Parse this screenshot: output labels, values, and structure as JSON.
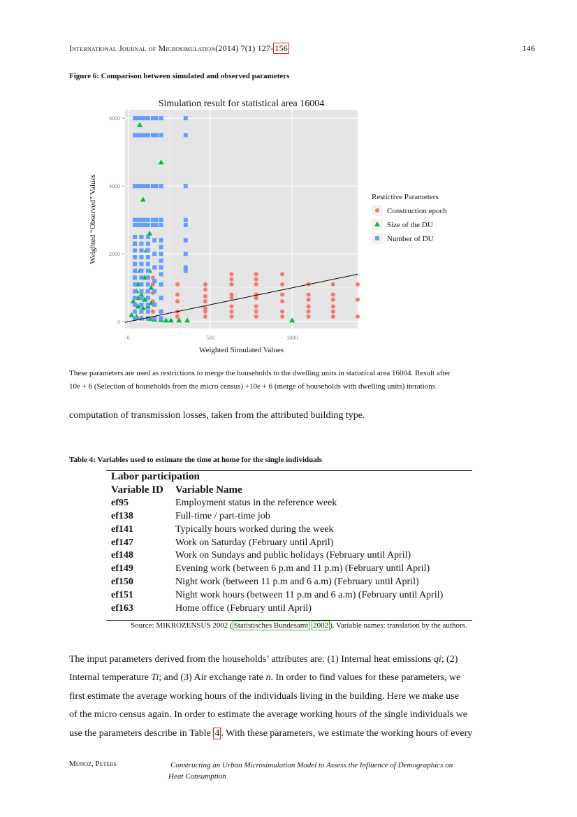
{
  "header": {
    "journal_name": "International Journal of Microsimulation",
    "journal_volume": "(2014) 7(1) 127-",
    "journal_end_page": "156",
    "page_number": "146"
  },
  "figure": {
    "caption": "Figure 6: Comparison between simulated and observed parameters",
    "note_line1": "These parameters are used as restrictions to merge the households to the dwelling units in statistical area 16004. Result after",
    "note_line2": "10e + 6 (Selection of households from the micro census) +10e + 6 (merge of households with dwelling units) iterations"
  },
  "chart_data": {
    "type": "scatter",
    "title": "Simulation result for statistical area 16004",
    "xlabel": "Weighted Simulated Values",
    "ylabel": "Weighted “Observed” Values",
    "xlim": [
      -20,
      1400
    ],
    "ylim": [
      -200,
      6250
    ],
    "x_ticks": [
      0,
      500,
      1000
    ],
    "y_ticks": [
      0,
      2000,
      4000,
      6000
    ],
    "x_tick_labels": [
      "0",
      "500",
      "1000"
    ],
    "y_tick_labels": [
      "0",
      "2000",
      "4000",
      "6000"
    ],
    "grid": true,
    "legend_title": "Restictive Parameters",
    "legend_position": "right",
    "series": [
      {
        "name": "Construction epoch",
        "shape": "circle",
        "color": "#f8766d",
        "points": [
          [
            150,
            1300
          ],
          [
            150,
            1100
          ],
          [
            150,
            850
          ],
          [
            150,
            600
          ],
          [
            150,
            300
          ],
          [
            150,
            100
          ],
          [
            300,
            1100
          ],
          [
            300,
            800
          ],
          [
            300,
            600
          ],
          [
            300,
            300
          ],
          [
            300,
            150
          ],
          [
            470,
            1100
          ],
          [
            470,
            950
          ],
          [
            470,
            750
          ],
          [
            470,
            600
          ],
          [
            470,
            400
          ],
          [
            470,
            300
          ],
          [
            470,
            150
          ],
          [
            630,
            1400
          ],
          [
            630,
            1250
          ],
          [
            630,
            1100
          ],
          [
            630,
            800
          ],
          [
            630,
            700
          ],
          [
            630,
            450
          ],
          [
            630,
            300
          ],
          [
            630,
            150
          ],
          [
            780,
            1400
          ],
          [
            780,
            1250
          ],
          [
            780,
            1100
          ],
          [
            780,
            800
          ],
          [
            780,
            700
          ],
          [
            780,
            450
          ],
          [
            780,
            300
          ],
          [
            780,
            150
          ],
          [
            940,
            1400
          ],
          [
            940,
            1100
          ],
          [
            940,
            800
          ],
          [
            940,
            600
          ],
          [
            940,
            300
          ],
          [
            940,
            150
          ],
          [
            1100,
            1100
          ],
          [
            1100,
            800
          ],
          [
            1100,
            650
          ],
          [
            1100,
            450
          ],
          [
            1100,
            300
          ],
          [
            1100,
            150
          ],
          [
            1250,
            1100
          ],
          [
            1250,
            800
          ],
          [
            1250,
            650
          ],
          [
            1250,
            450
          ],
          [
            1250,
            300
          ],
          [
            1250,
            150
          ],
          [
            1400,
            1100
          ],
          [
            1400,
            650
          ],
          [
            1400,
            150
          ]
        ]
      },
      {
        "name": "Size of the DU",
        "shape": "triangle",
        "color": "#00ba38",
        "points": [
          [
            70,
            5800
          ],
          [
            200,
            4700
          ],
          [
            90,
            3600
          ],
          [
            130,
            2600
          ],
          [
            40,
            2300
          ],
          [
            110,
            2100
          ],
          [
            70,
            1500
          ],
          [
            130,
            1500
          ],
          [
            100,
            1300
          ],
          [
            60,
            1100
          ],
          [
            140,
            1000
          ],
          [
            50,
            900
          ],
          [
            120,
            900
          ],
          [
            80,
            800
          ],
          [
            30,
            600
          ],
          [
            60,
            700
          ],
          [
            100,
            650
          ],
          [
            140,
            550
          ],
          [
            120,
            450
          ],
          [
            60,
            450
          ],
          [
            90,
            400
          ],
          [
            20,
            200
          ],
          [
            50,
            150
          ],
          [
            80,
            100
          ],
          [
            130,
            80
          ],
          [
            160,
            60
          ],
          [
            200,
            50
          ],
          [
            230,
            40
          ],
          [
            260,
            40
          ],
          [
            310,
            40
          ],
          [
            360,
            40
          ],
          [
            1000,
            40
          ]
        ]
      },
      {
        "name": "Number of DU",
        "shape": "square",
        "color": "#619cff",
        "points": [
          [
            40,
            6000
          ],
          [
            60,
            6000
          ],
          [
            80,
            6000
          ],
          [
            100,
            6000
          ],
          [
            120,
            6000
          ],
          [
            150,
            6000
          ],
          [
            170,
            6000
          ],
          [
            200,
            6000
          ],
          [
            40,
            5500
          ],
          [
            60,
            5500
          ],
          [
            80,
            5500
          ],
          [
            100,
            5500
          ],
          [
            120,
            5500
          ],
          [
            150,
            5500
          ],
          [
            170,
            5500
          ],
          [
            200,
            5500
          ],
          [
            350,
            6000
          ],
          [
            350,
            5500
          ],
          [
            350,
            4000
          ],
          [
            350,
            3000
          ],
          [
            350,
            2850
          ],
          [
            350,
            2400
          ],
          [
            350,
            2000
          ],
          [
            350,
            1600
          ],
          [
            350,
            1500
          ],
          [
            40,
            4000
          ],
          [
            60,
            4000
          ],
          [
            80,
            4000
          ],
          [
            100,
            4000
          ],
          [
            120,
            4000
          ],
          [
            150,
            4000
          ],
          [
            170,
            4000
          ],
          [
            200,
            4000
          ],
          [
            40,
            3000
          ],
          [
            40,
            2850
          ],
          [
            60,
            3000
          ],
          [
            60,
            2850
          ],
          [
            80,
            3000
          ],
          [
            80,
            2850
          ],
          [
            100,
            3000
          ],
          [
            100,
            2850
          ],
          [
            120,
            3000
          ],
          [
            120,
            2850
          ],
          [
            150,
            3000
          ],
          [
            150,
            2850
          ],
          [
            170,
            3000
          ],
          [
            170,
            2850
          ],
          [
            200,
            3000
          ],
          [
            200,
            2850
          ],
          [
            40,
            2500
          ],
          [
            40,
            2300
          ],
          [
            40,
            2100
          ],
          [
            40,
            1900
          ],
          [
            40,
            1700
          ],
          [
            40,
            1500
          ],
          [
            40,
            1300
          ],
          [
            40,
            1100
          ],
          [
            40,
            900
          ],
          [
            40,
            700
          ],
          [
            40,
            500
          ],
          [
            40,
            300
          ],
          [
            40,
            100
          ],
          [
            80,
            2500
          ],
          [
            80,
            2300
          ],
          [
            80,
            2100
          ],
          [
            80,
            1900
          ],
          [
            80,
            1700
          ],
          [
            80,
            1500
          ],
          [
            80,
            1300
          ],
          [
            80,
            1100
          ],
          [
            80,
            900
          ],
          [
            80,
            700
          ],
          [
            80,
            500
          ],
          [
            80,
            300
          ],
          [
            80,
            100
          ],
          [
            120,
            2500
          ],
          [
            120,
            2300
          ],
          [
            120,
            2100
          ],
          [
            120,
            1900
          ],
          [
            120,
            1700
          ],
          [
            120,
            1500
          ],
          [
            120,
            1300
          ],
          [
            120,
            1100
          ],
          [
            120,
            900
          ],
          [
            120,
            700
          ],
          [
            120,
            500
          ],
          [
            120,
            300
          ],
          [
            120,
            100
          ],
          [
            160,
            2400
          ],
          [
            160,
            2000
          ],
          [
            160,
            1600
          ],
          [
            160,
            1200
          ],
          [
            160,
            900
          ],
          [
            160,
            500
          ],
          [
            160,
            100
          ],
          [
            200,
            2400
          ],
          [
            200,
            2200
          ],
          [
            200,
            2000
          ],
          [
            200,
            1800
          ],
          [
            200,
            1600
          ],
          [
            200,
            1400
          ],
          [
            200,
            1100
          ],
          [
            200,
            700
          ],
          [
            200,
            300
          ],
          [
            200,
            100
          ]
        ]
      }
    ],
    "reference_line": {
      "intercept": 0,
      "slope": 1
    }
  },
  "text": {
    "continuation_line": "computation of transmission losses, taken from the attributed building type."
  },
  "table": {
    "caption": "Table 4: Variables used to estimate the time at home for the single individuals",
    "section_title": "Labor participation",
    "col_id": "Variable ID",
    "col_name": "Variable Name",
    "rows": [
      {
        "id": "ef95",
        "name": "Employment status in the reference week"
      },
      {
        "id": "ef138",
        "name": "Full-time / part-time job"
      },
      {
        "id": "ef141",
        "name": "Typically hours worked during the week"
      },
      {
        "id": "ef147",
        "name": "Work on Saturday (February until April)"
      },
      {
        "id": "ef148",
        "name": "Work on Sundays and public holidays (February until April)"
      },
      {
        "id": "ef149",
        "name": "Evening work (between 6 p.m and 11 p.m) (February until April)"
      },
      {
        "id": "ef150",
        "name": "Night work (between 11 p.m and 6 a.m) (February until April)"
      },
      {
        "id": "ef151",
        "name": "Night work hours (between 11 p.m and 6 a.m) (February until April)"
      },
      {
        "id": "ef163",
        "name": "Home office (February until April)"
      }
    ],
    "source_prefix": "Source: MIKROZENSUS 2002 (",
    "source_cite_author": "Statistisches Bundesamt",
    "source_cite_year": "2002",
    "source_suffix": "). Variable names: translation by the authors."
  },
  "paragraph": {
    "l1a": "The input parameters derived from the households’ attributes are:  (1) Internal heat emissions ",
    "l1var": "qi",
    "l1b": "; (2)",
    "l2a": "Internal temperature ",
    "l2var": "Ti",
    "l2b": "; and (3) Air exchange rate ",
    "l2var2": "n",
    "l2c": ".  In order to find values for these parameters, we",
    "l3": "first estimate the average working hours of the individuals living in the building.  Here we make use",
    "l4": "of the micro census again.  In order to estimate the average working hours of the single individuals we",
    "l5a": "use the parameters describe in Table ",
    "l5ref": "4",
    "l5b": ".  With these parameters, we estimate the working hours of every"
  },
  "footer": {
    "authors": "Munoz, Peters",
    "title_line1": "Constructing an Urban Microsimulation Model to Assess the Influence of Demographics on",
    "title_line2": "Heat Consumption"
  }
}
